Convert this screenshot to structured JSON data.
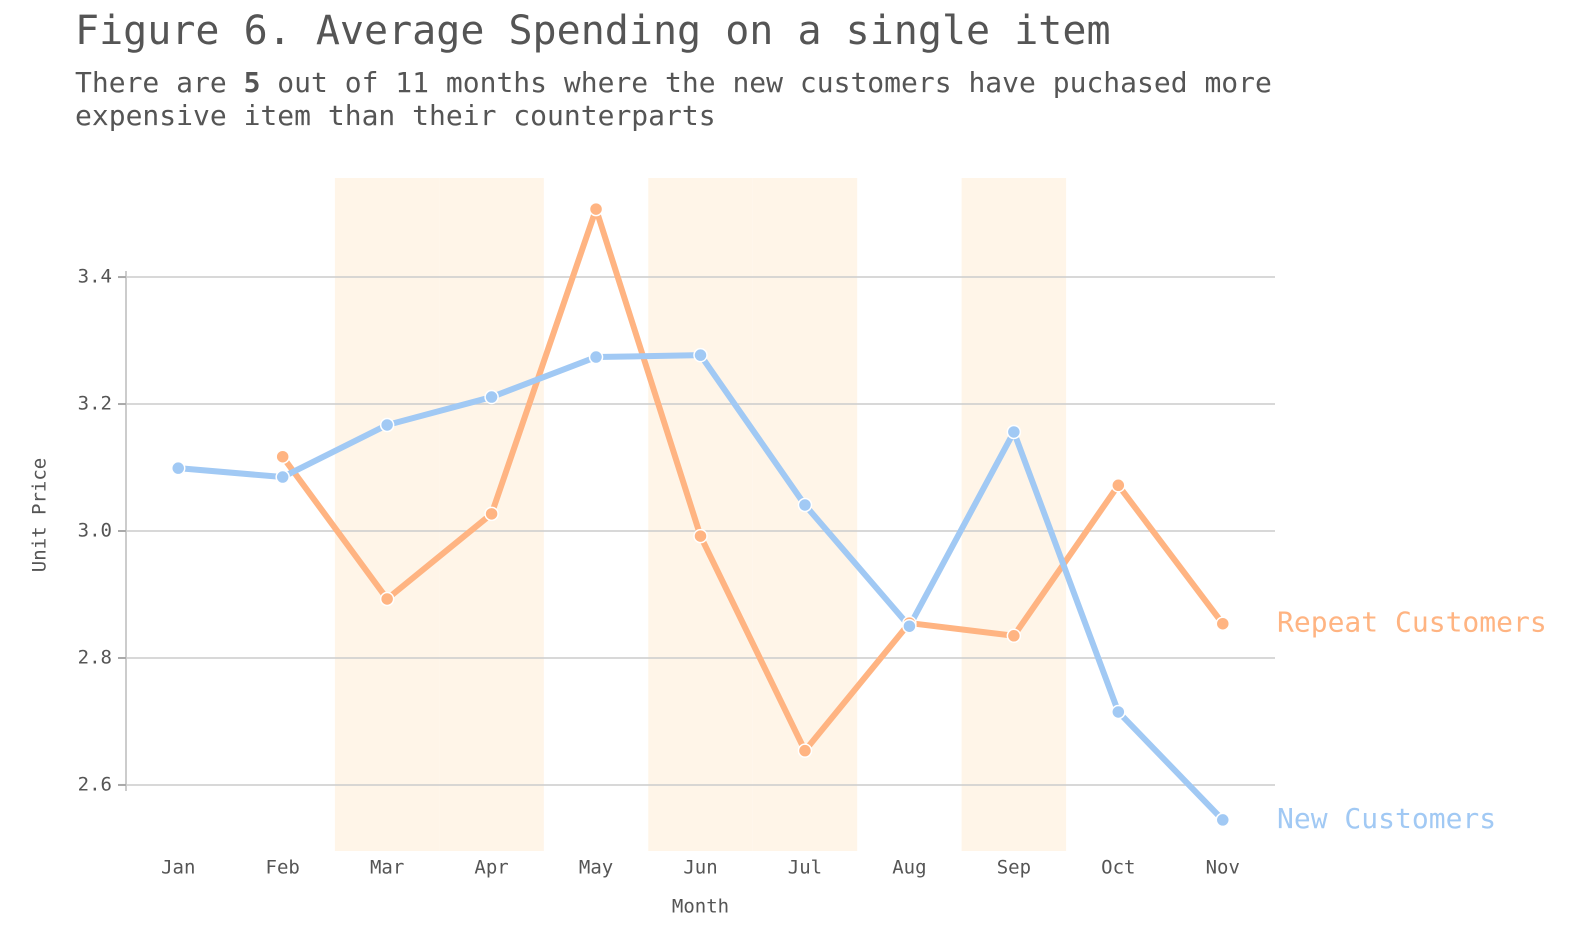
{
  "chart_data": {
    "type": "line",
    "title": "Figure 6. Average Spending on a single item",
    "subtitle": [
      [
        {
          "text": "There are "
        },
        {
          "text": "5",
          "bold": true
        },
        {
          "text": " out of 11 months where the new customers have puchased more"
        }
      ],
      [
        {
          "text": "expensive item than their counterparts"
        }
      ]
    ],
    "x_label": "Month",
    "y_label": "Unit Price",
    "categories": [
      "Jan",
      "Feb",
      "Mar",
      "Apr",
      "May",
      "Jun",
      "Jul",
      "Aug",
      "Sep",
      "Oct",
      "Nov"
    ],
    "series": [
      {
        "name": "New Customers",
        "color": "#a1c9f4",
        "values": [
          3.099,
          3.085,
          3.167,
          3.211,
          3.274,
          3.277,
          3.041,
          2.85,
          3.156,
          2.715,
          2.545
        ]
      },
      {
        "name": "Repeat Customers",
        "color": "#ffb482",
        "values": [
          null,
          3.117,
          2.893,
          3.027,
          3.507,
          2.992,
          2.654,
          2.855,
          2.835,
          3.072,
          2.854
        ]
      }
    ],
    "highlight_color": "#fff5e8",
    "ylim": [
      2.496,
      3.556
    ],
    "yticks": [
      {
        "value": 2.6,
        "label": "2.6"
      },
      {
        "value": 2.8,
        "label": "2.8"
      },
      {
        "value": 3.0,
        "label": "3.0"
      },
      {
        "value": 3.2,
        "label": "3.2"
      },
      {
        "value": 3.4,
        "label": "3.4"
      }
    ],
    "grid": true
  }
}
